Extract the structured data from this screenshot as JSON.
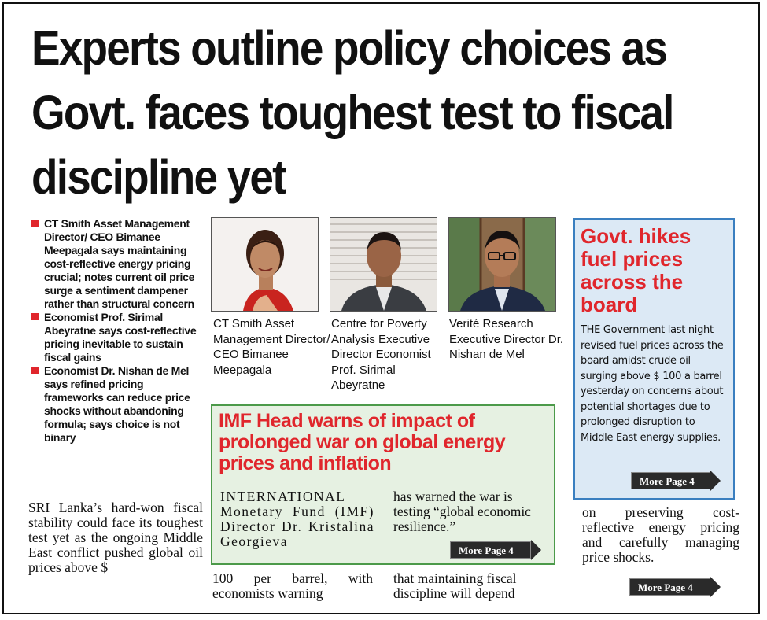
{
  "headline": "Experts outline policy choices as Govt. faces toughest test to fiscal discipline yet",
  "bullets": [
    "CT Smith Asset Management Director/ CEO Bimanee Meepagala says maintaining cost-reflective energy pricing crucial; notes current oil price surge a sentiment dampener rather than structural concern",
    "Economist Prof. Sirimal Abeyratne says cost-reflective pricing inevitable to sustain fiscal gains",
    "Economist Dr. Nishan de Mel says refined pricing frameworks can reduce price shocks without abandoning formula; says choice is not binary"
  ],
  "main_story": {
    "col1": "SRI Lanka’s hard-won fiscal stability could face its toughest test yet as the ongoing Middle East conflict pushed global oil prices above $",
    "col2": "100 per barrel, with economists warning",
    "col3": "that maintaining fiscal discipline will depend",
    "col4": "on preserving cost-reflective energy pricing and carefully managing price shocks."
  },
  "photos": [
    {
      "caption": "CT Smith Asset Management Director/ CEO Bimanee Meepagala"
    },
    {
      "caption": "Centre for Poverty Analysis Executive Director Economist Prof. Sirimal Abeyratne"
    },
    {
      "caption": "Verité Research Executive Director Dr. Nishan de Mel"
    }
  ],
  "imf_box": {
    "headline": "IMF Head warns of impact of prolonged war on global energy prices and inflation",
    "col1": "INTERNATIONAL Monetary Fund (IMF) Director Dr. Kristalina Georgieva",
    "col2": "has warned the war is testing “global economic resilience.”",
    "more": "More Page 4"
  },
  "fuel_box": {
    "headline": "Govt. hikes fuel prices across the board",
    "body": "THE Government last night revised fuel prices across the board amidst crude oil surging above $ 100 a barrel yesterday on concerns about potential shortages due to prolonged disruption to Middle East energy supplies.",
    "more": "More Page 4"
  },
  "main_more": "More Page 4",
  "colors": {
    "accent_red": "#e0262c",
    "imf_green": "#4c9a4a",
    "fuel_blue": "#3a7fc0"
  }
}
